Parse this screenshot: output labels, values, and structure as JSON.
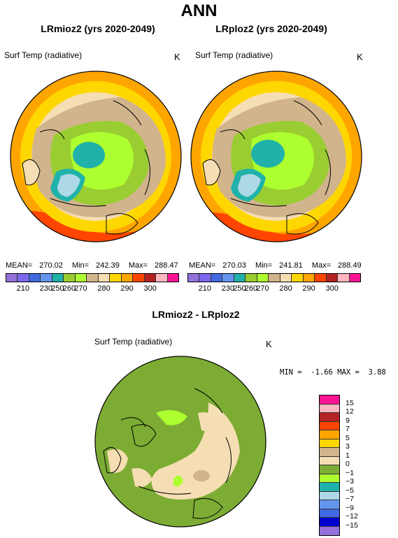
{
  "main_title": "ANN",
  "panels": [
    {
      "title": "LRmioz2 (yrs 2020-2049)",
      "field": "Surf Temp (radiative)",
      "units": "K",
      "mean_label": "MEAN=",
      "mean": "270.02",
      "min_label": "Min=",
      "min": "242.39",
      "max_label": "Max=",
      "max": "288.47"
    },
    {
      "title": "LRploz2 (yrs 2020-2049)",
      "field": "Surf Temp (radiative)",
      "units": "K",
      "mean_label": "MEAN=",
      "mean": "270.03",
      "min_label": "Min=",
      "min": "241.81",
      "max_label": "Max=",
      "max": "288.49"
    }
  ],
  "abs_colorbar": {
    "colors": [
      "#9370db",
      "#7b68ee",
      "#4169e1",
      "#6495ed",
      "#20b2aa",
      "#9acd32",
      "#adff2f",
      "#d2b48c",
      "#f5deb3",
      "#ffd700",
      "#ffa500",
      "#ff4500",
      "#b22222",
      "#ffb6c1",
      "#ff1493"
    ],
    "labels": [
      "210",
      "230",
      "250",
      "260",
      "270",
      "280",
      "290",
      "300"
    ]
  },
  "diff": {
    "title": "LRmioz2 - LRploz2",
    "field": "Surf Temp (radiative)",
    "units": "K",
    "min_label": "MIN =",
    "min": "-1.66",
    "max_label": "MAX =",
    "max": "3.88",
    "colorbar": {
      "colors": [
        "#ff1493",
        "#ffb6c1",
        "#b22222",
        "#ff4500",
        "#ffa500",
        "#ffd700",
        "#d2b48c",
        "#f5deb3",
        "#7cac34",
        "#adff2f",
        "#20b2aa",
        "#add8e6",
        "#6495ed",
        "#4169e1",
        "#0000cd",
        "#9370db"
      ],
      "labels": [
        "15",
        "12",
        "9",
        "7",
        "5",
        "3",
        "1",
        "0",
        "−1",
        "−3",
        "−5",
        "−7",
        "−9",
        "−12",
        "−15"
      ]
    }
  }
}
